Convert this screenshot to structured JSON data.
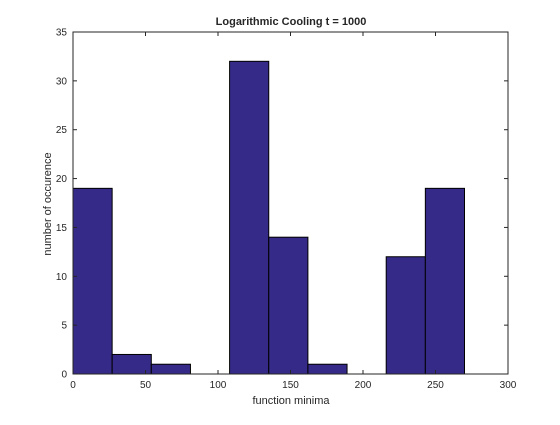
{
  "chart_data": {
    "type": "bar",
    "title": "Logarithmic Cooling t = 1000",
    "xlabel": "function minima",
    "ylabel": "number of occurence",
    "xlim": [
      0,
      300
    ],
    "ylim": [
      0,
      35
    ],
    "xticks": [
      0,
      50,
      100,
      150,
      200,
      250,
      300
    ],
    "yticks": [
      0,
      5,
      10,
      15,
      20,
      25,
      30,
      35
    ],
    "bins": [
      {
        "x0": 0,
        "x1": 27,
        "value": 19
      },
      {
        "x0": 27,
        "x1": 54,
        "value": 2
      },
      {
        "x0": 54,
        "x1": 81,
        "value": 1
      },
      {
        "x0": 81,
        "x1": 108,
        "value": 0
      },
      {
        "x0": 108,
        "x1": 135,
        "value": 32
      },
      {
        "x0": 135,
        "x1": 162,
        "value": 14
      },
      {
        "x0": 162,
        "x1": 189,
        "value": 1
      },
      {
        "x0": 189,
        "x1": 216,
        "value": 0
      },
      {
        "x0": 216,
        "x1": 243,
        "value": 12
      },
      {
        "x0": 243,
        "x1": 270,
        "value": 19
      }
    ],
    "colors": {
      "bar_fill": "#352a87",
      "bar_edge": "#000000",
      "axis": "#262626"
    },
    "grid": false,
    "legend": "none"
  }
}
